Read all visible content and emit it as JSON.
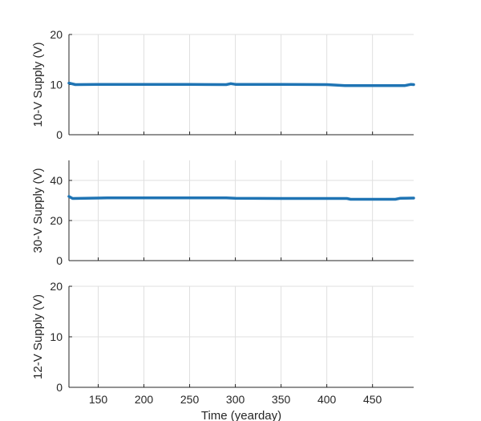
{
  "chart_data": [
    {
      "type": "line",
      "ylabel": "10-V Supply (V)",
      "xlim": [
        118,
        495
      ],
      "ylim": [
        0,
        20
      ],
      "xticks": [
        150,
        200,
        250,
        300,
        350,
        400,
        450
      ],
      "yticks": [
        0,
        10,
        20
      ],
      "grid": true,
      "color": "#1f74b4",
      "series": [
        {
          "x": [
            118,
            125,
            150,
            200,
            250,
            290,
            295,
            300,
            350,
            400,
            420,
            450,
            485,
            492,
            495
          ],
          "y": [
            10.3,
            10.0,
            10.05,
            10.05,
            10.05,
            10.0,
            10.2,
            10.05,
            10.05,
            10.0,
            9.8,
            9.8,
            9.8,
            10.05,
            10.0
          ]
        }
      ]
    },
    {
      "type": "line",
      "ylabel": "30-V Supply (V)",
      "xlim": [
        118,
        495
      ],
      "ylim": [
        0,
        50
      ],
      "xticks": [
        150,
        200,
        250,
        300,
        350,
        400,
        450
      ],
      "yticks": [
        0,
        20,
        40
      ],
      "grid": true,
      "color": "#1f74b4",
      "series": [
        {
          "x": [
            118,
            122,
            160,
            200,
            250,
            290,
            300,
            350,
            400,
            422,
            426,
            450,
            475,
            480,
            495
          ],
          "y": [
            32.0,
            31.0,
            31.3,
            31.3,
            31.3,
            31.3,
            31.1,
            31.0,
            31.0,
            31.0,
            30.6,
            30.6,
            30.6,
            31.1,
            31.2
          ]
        }
      ]
    },
    {
      "type": "line",
      "ylabel": "12-V Supply (V)",
      "xlabel": "Time (yearday)",
      "xlim": [
        118,
        495
      ],
      "ylim": [
        0,
        20
      ],
      "xticks": [
        150,
        200,
        250,
        300,
        350,
        400,
        450
      ],
      "xticklabels": [
        "150",
        "200",
        "250",
        "300",
        "350",
        "400",
        "450"
      ],
      "yticks": [
        0,
        10,
        20
      ],
      "grid": true,
      "color": "#1f74b4",
      "series": [
        {
          "x": [],
          "y": []
        }
      ]
    }
  ]
}
